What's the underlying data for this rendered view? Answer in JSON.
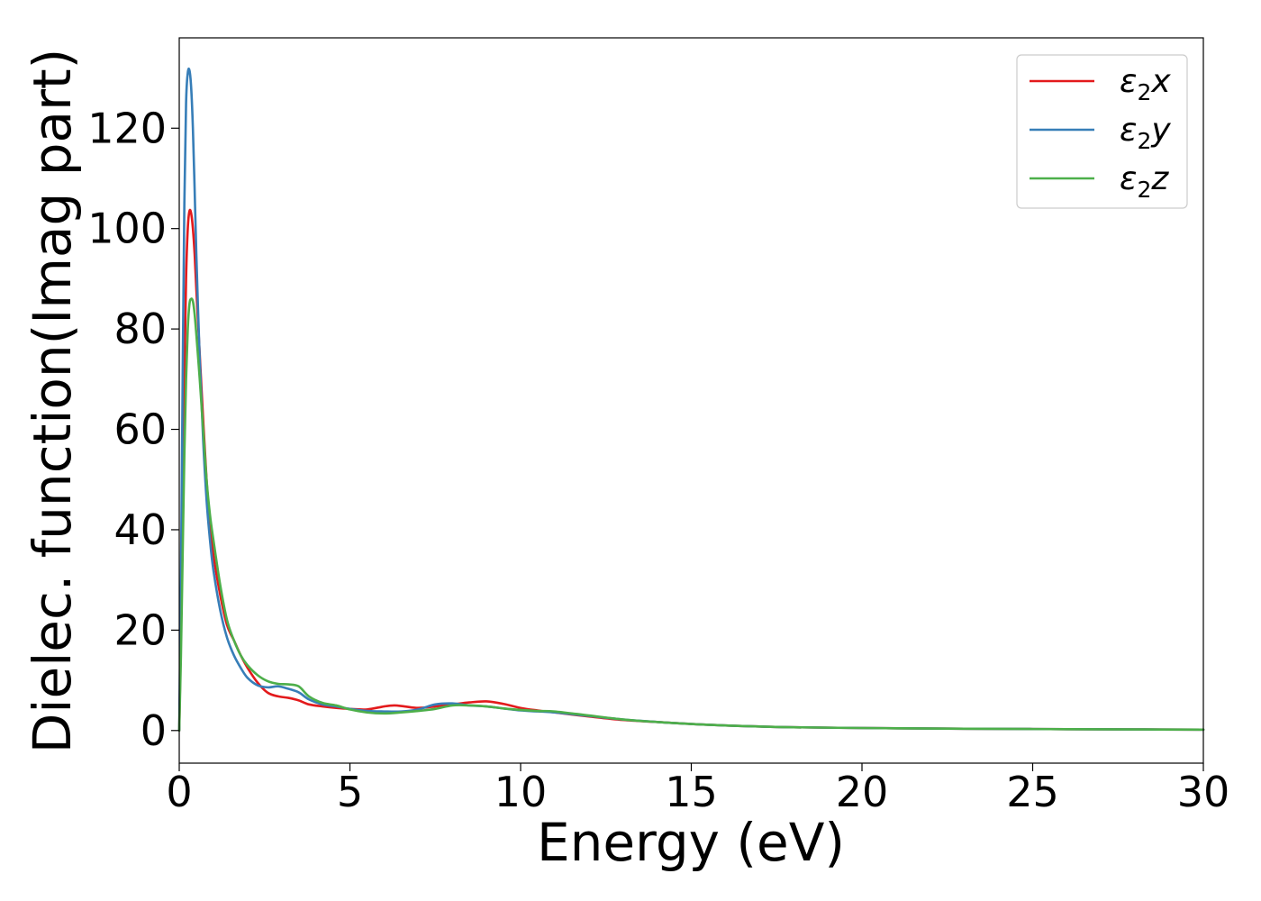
{
  "chart_data": {
    "type": "line",
    "title": "",
    "xlabel": "Energy (eV)",
    "ylabel": "Dielec. function(Imag part)",
    "xlim": [
      0,
      30
    ],
    "ylim": [
      -6.5,
      138
    ],
    "xticks": [
      0,
      5,
      10,
      15,
      20,
      25,
      30
    ],
    "yticks": [
      0,
      20,
      40,
      60,
      80,
      100,
      120
    ],
    "grid": false,
    "legend_position": "top-right",
    "series": [
      {
        "name": "ε₂x",
        "label_base": "ε",
        "label_sub": "2",
        "label_tail": "x",
        "color": "#e31a1c",
        "x": [
          0,
          0.05,
          0.1,
          0.15,
          0.2,
          0.25,
          0.3,
          0.35,
          0.4,
          0.45,
          0.5,
          0.6,
          0.7,
          0.8,
          0.9,
          1.0,
          1.2,
          1.4,
          1.6,
          1.8,
          2.0,
          2.3,
          2.6,
          2.9,
          3.2,
          3.5,
          3.8,
          4.2,
          4.6,
          5.0,
          5.5,
          6.0,
          6.3,
          6.6,
          7.0,
          7.5,
          8.0,
          8.5,
          9.0,
          9.5,
          10.0,
          10.5,
          11.0,
          12.0,
          13.0,
          14.0,
          15.0,
          16.0,
          17.0,
          18.0,
          20.0,
          22.0,
          24.0,
          26.0,
          28.0,
          30.0
        ],
        "y": [
          0,
          20,
          45,
          70,
          90,
          100,
          103.5,
          103,
          100,
          95,
          88,
          75,
          62,
          50,
          41,
          35,
          27,
          21,
          18,
          15,
          12.5,
          9.5,
          7.5,
          6.8,
          6.5,
          6.0,
          5.2,
          4.8,
          4.5,
          4.3,
          4.2,
          4.8,
          5.0,
          4.8,
          4.5,
          4.8,
          5.2,
          5.6,
          5.8,
          5.3,
          4.5,
          4.0,
          3.6,
          2.8,
          2.1,
          1.7,
          1.3,
          1.0,
          0.8,
          0.65,
          0.5,
          0.4,
          0.33,
          0.27,
          0.22,
          0.18
        ]
      },
      {
        "name": "ε₂y",
        "label_base": "ε",
        "label_sub": "2",
        "label_tail": "y",
        "color": "#377eb8",
        "x": [
          0,
          0.05,
          0.1,
          0.15,
          0.2,
          0.25,
          0.3,
          0.35,
          0.4,
          0.45,
          0.5,
          0.6,
          0.7,
          0.8,
          0.9,
          1.0,
          1.2,
          1.4,
          1.6,
          1.8,
          2.0,
          2.3,
          2.6,
          2.9,
          3.2,
          3.5,
          3.8,
          4.2,
          4.6,
          5.0,
          5.5,
          6.0,
          6.5,
          7.0,
          7.5,
          8.0,
          8.5,
          9.0,
          9.5,
          10.0,
          10.5,
          11.0,
          12.0,
          13.0,
          14.0,
          15.0,
          16.0,
          17.0,
          18.0,
          20.0,
          22.0,
          24.0,
          26.0,
          28.0,
          30.0
        ],
        "y": [
          0,
          30,
          70,
          105,
          125,
          131,
          131.5,
          128,
          120,
          108,
          95,
          74,
          58,
          46,
          38,
          32,
          24,
          18.5,
          15,
          12.5,
          10.5,
          9,
          8.6,
          8.8,
          8.3,
          7.6,
          6.2,
          5.2,
          4.8,
          4.3,
          3.9,
          3.8,
          3.8,
          4.2,
          5.2,
          5.4,
          5.0,
          4.8,
          4.4,
          4.0,
          3.8,
          3.6,
          2.9,
          2.2,
          1.7,
          1.3,
          1.0,
          0.8,
          0.65,
          0.5,
          0.4,
          0.33,
          0.27,
          0.22,
          0.18
        ]
      },
      {
        "name": "ε₂z",
        "label_base": "ε",
        "label_sub": "2",
        "label_tail": "z",
        "color": "#4daf4a",
        "x": [
          0,
          0.05,
          0.1,
          0.15,
          0.2,
          0.25,
          0.3,
          0.35,
          0.4,
          0.45,
          0.5,
          0.6,
          0.7,
          0.8,
          0.9,
          1.0,
          1.2,
          1.4,
          1.6,
          1.8,
          2.0,
          2.3,
          2.6,
          2.9,
          3.2,
          3.5,
          3.8,
          4.2,
          4.6,
          5.0,
          5.5,
          6.0,
          6.5,
          7.0,
          7.5,
          8.0,
          8.5,
          9.0,
          9.5,
          10.0,
          10.5,
          11.0,
          12.0,
          13.0,
          14.0,
          15.0,
          16.0,
          17.0,
          18.0,
          20.0,
          22.0,
          24.0,
          26.0,
          28.0,
          30.0
        ],
        "y": [
          0,
          15,
          35,
          55,
          70,
          80,
          85,
          86,
          85.5,
          83,
          79,
          70,
          60,
          50,
          43,
          38,
          29,
          22,
          18,
          15,
          13,
          11,
          9.8,
          9.3,
          9.2,
          8.8,
          6.8,
          5.5,
          5.0,
          4.2,
          3.6,
          3.4,
          3.6,
          3.9,
          4.3,
          5.0,
          5.0,
          4.8,
          4.4,
          4.1,
          3.9,
          3.8,
          3.0,
          2.2,
          1.7,
          1.3,
          1.0,
          0.8,
          0.65,
          0.5,
          0.4,
          0.33,
          0.27,
          0.22,
          0.18
        ]
      }
    ]
  }
}
